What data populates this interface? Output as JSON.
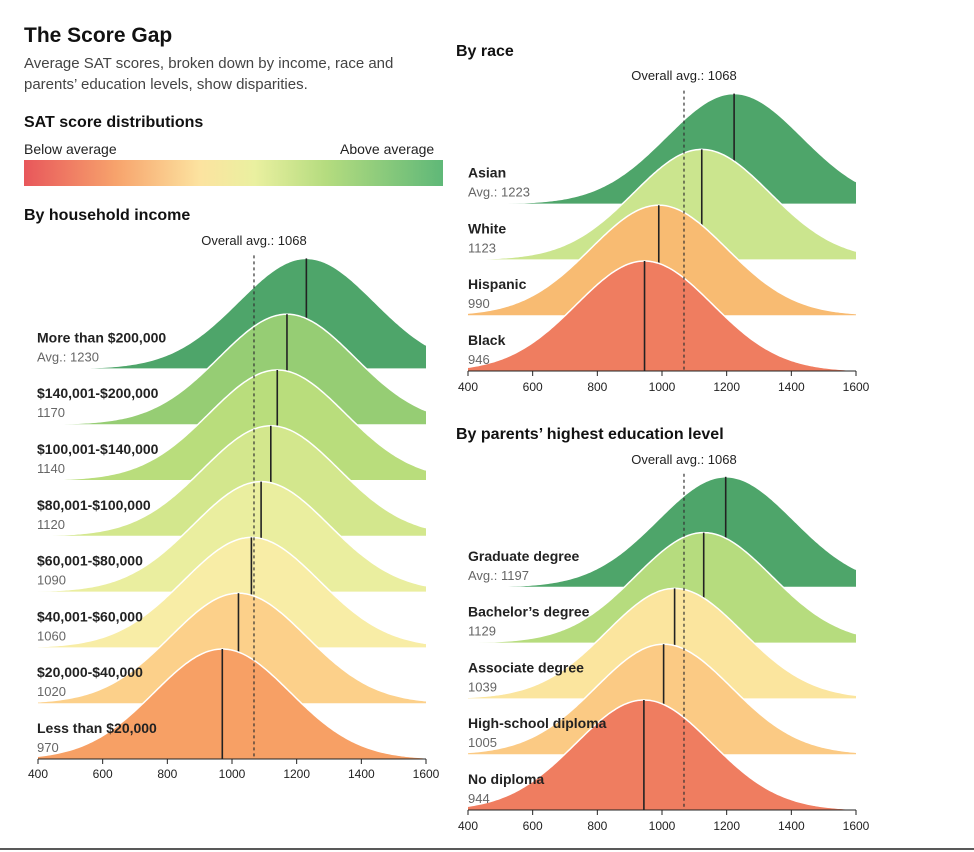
{
  "title": "The Score Gap",
  "subtitle": "Average SAT scores, broken down by income, race and parents’ education levels, show disparities.",
  "legend": {
    "title": "SAT score distributions",
    "below": "Below average",
    "above": "Above average",
    "colors": [
      "#e8575b",
      "#f7a36c",
      "#fce3a0",
      "#eaf0a0",
      "#b5dc7f",
      "#5fb878"
    ]
  },
  "chart_data": [
    {
      "type": "area",
      "title": "By household income",
      "overall_avg_label": "Overall avg.: 1068",
      "overall_avg": 1068,
      "xlim": [
        400,
        1600
      ],
      "xticks": [
        "400",
        "600",
        "800",
        "1000",
        "1200",
        "1400",
        "1600"
      ],
      "groups": [
        {
          "label": "More than $200,000",
          "value_label": "Avg.: 1230",
          "mean": 1230,
          "color": "#4ea56a"
        },
        {
          "label": "$140,001-$200,000",
          "value_label": "1170",
          "mean": 1170,
          "color": "#96cd74"
        },
        {
          "label": "$100,001-$140,000",
          "value_label": "1140",
          "mean": 1140,
          "color": "#b9dd7c"
        },
        {
          "label": "$80,001-$100,000",
          "value_label": "1120",
          "mean": 1120,
          "color": "#d3e78d"
        },
        {
          "label": "$60,001-$80,000",
          "value_label": "1090",
          "mean": 1090,
          "color": "#eaee9f"
        },
        {
          "label": "$40,001-$60,000",
          "value_label": "1060",
          "mean": 1060,
          "color": "#f8eda6"
        },
        {
          "label": "$20,000-$40,000",
          "value_label": "1020",
          "mean": 1020,
          "color": "#fcd08a"
        },
        {
          "label": "Less than $20,000",
          "value_label": "970",
          "mean": 970,
          "color": "#f7a065"
        }
      ]
    },
    {
      "type": "area",
      "title": "By race",
      "overall_avg_label": "Overall avg.: 1068",
      "overall_avg": 1068,
      "xlim": [
        400,
        1600
      ],
      "xticks": [
        "400",
        "600",
        "800",
        "1000",
        "1200",
        "1400",
        "1600"
      ],
      "groups": [
        {
          "label": "Asian",
          "value_label": "Avg.: 1223",
          "mean": 1223,
          "color": "#4ea56a"
        },
        {
          "label": "White",
          "value_label": "1123",
          "mean": 1123,
          "color": "#cbe58e"
        },
        {
          "label": "Hispanic",
          "value_label": "990",
          "mean": 990,
          "color": "#f8bb72"
        },
        {
          "label": "Black",
          "value_label": "946",
          "mean": 946,
          "color": "#ef7d60"
        }
      ]
    },
    {
      "type": "area",
      "title": "By parents’ highest education level",
      "overall_avg_label": "Overall avg.: 1068",
      "overall_avg": 1068,
      "xlim": [
        400,
        1600
      ],
      "xticks": [
        "400",
        "600",
        "800",
        "1000",
        "1200",
        "1400",
        "1600"
      ],
      "groups": [
        {
          "label": "Graduate degree",
          "value_label": "Avg.: 1197",
          "mean": 1197,
          "color": "#4ea56a"
        },
        {
          "label": "Bachelor’s degree",
          "value_label": "1129",
          "mean": 1129,
          "color": "#b6dc7e"
        },
        {
          "label": "Associate degree",
          "value_label": "1039",
          "mean": 1039,
          "color": "#fbe59e"
        },
        {
          "label": "High-school diploma",
          "value_label": "1005",
          "mean": 1005,
          "color": "#fbca84"
        },
        {
          "label": "No diploma",
          "value_label": "944",
          "mean": 944,
          "color": "#ef7d60"
        }
      ]
    }
  ]
}
